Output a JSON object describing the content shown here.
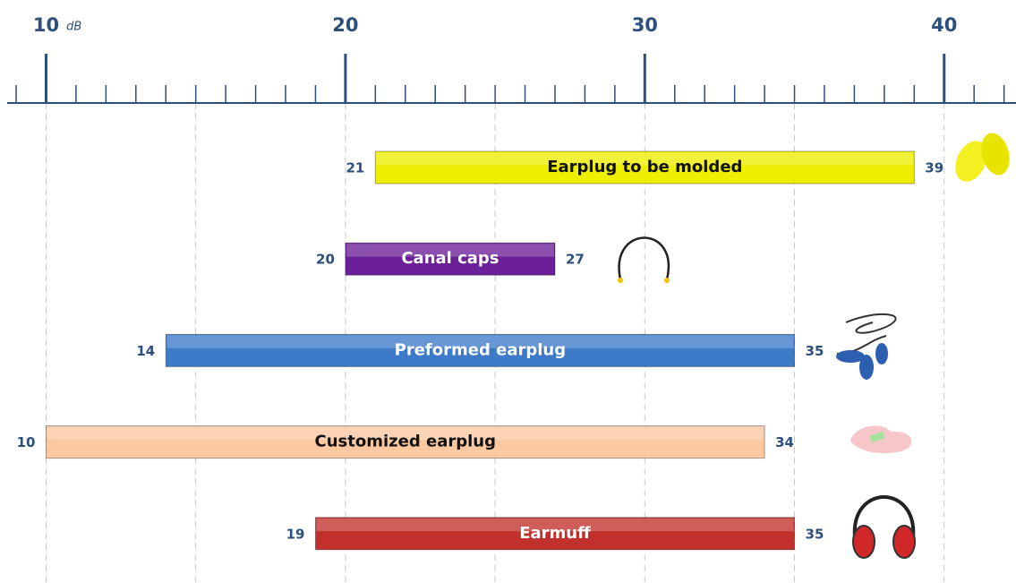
{
  "chart_data": {
    "type": "range_bar",
    "x_unit": "dB",
    "xlim": [
      8.7,
      42.4
    ],
    "xticks": [
      10,
      20,
      30,
      40
    ],
    "minor_ticks": [
      9,
      11,
      12,
      13,
      14,
      15,
      16,
      17,
      18,
      19,
      21,
      22,
      23,
      24,
      25,
      26,
      27,
      28,
      29,
      31,
      32,
      33,
      34,
      35,
      36,
      37,
      38,
      39,
      41,
      42
    ],
    "grid_ticks": [
      10,
      15,
      20,
      25,
      30,
      35,
      40
    ],
    "grid": true,
    "categories": [
      "Earplug to be molded",
      "Canal caps",
      "Preformed earplug",
      "Customized earplug",
      "Earmuff"
    ],
    "starts": [
      21,
      20,
      14,
      10,
      19
    ],
    "ends": [
      39,
      27,
      35,
      34,
      35
    ],
    "colors": [
      "#eeee00",
      "#6b1f98",
      "#3d7ac8",
      "#fcc8a0",
      "#c2302c"
    ],
    "text_colors": [
      "#111111",
      "#ffffff",
      "#ffffff",
      "#111111",
      "#ffffff"
    ]
  }
}
